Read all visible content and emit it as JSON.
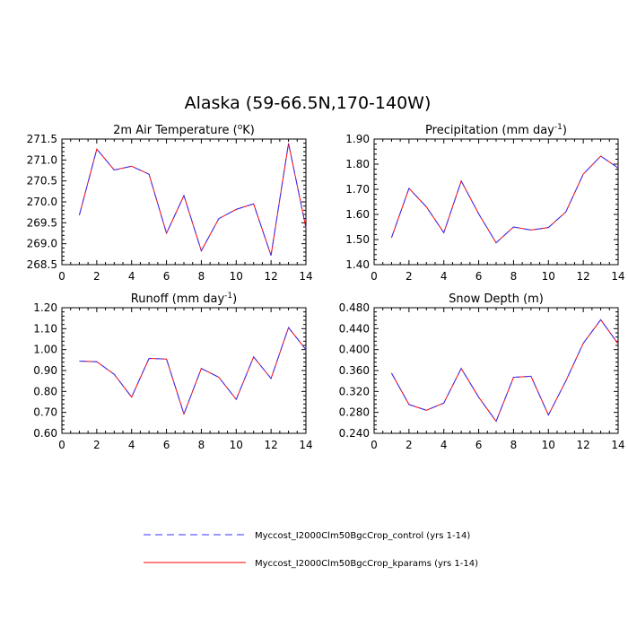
{
  "figure": {
    "title": "Alaska (59-66.5N,170-140W)"
  },
  "legend": [
    {
      "label": "Myccost_I2000Clm50BgcCrop_control (yrs 1-14)",
      "color": "#3333ff",
      "dash": true
    },
    {
      "label": "Myccost_I2000Clm50BgcCrop_kparams (yrs 1-14)",
      "color": "#ff0000",
      "dash": false
    }
  ],
  "chart_data": [
    {
      "type": "line",
      "title_main": "2m Air Temperature (",
      "title_sup": "o",
      "title_end": "K)",
      "x": [
        1,
        2,
        3,
        4,
        5,
        6,
        7,
        8,
        9,
        10,
        11,
        12,
        13,
        14
      ],
      "xlim": [
        0,
        14
      ],
      "xticks": [
        "0",
        "2",
        "4",
        "6",
        "8",
        "10",
        "12",
        "14"
      ],
      "ylim": [
        268.5,
        271.5
      ],
      "yticks": [
        "268.5",
        "269.0",
        "269.5",
        "270.0",
        "270.5",
        "271.0",
        "271.5"
      ],
      "series": [
        {
          "name": "Myccost_I2000Clm50BgcCrop_control (yrs 1-14)",
          "values": [
            269.68,
            271.26,
            270.76,
            270.85,
            270.66,
            269.25,
            270.15,
            268.83,
            269.6,
            269.82,
            269.95,
            268.72,
            271.4,
            269.38
          ]
        },
        {
          "name": "Myccost_I2000Clm50BgcCrop_kparams (yrs 1-14)",
          "values": [
            269.68,
            271.26,
            270.76,
            270.85,
            270.66,
            269.25,
            270.15,
            268.83,
            269.6,
            269.82,
            269.95,
            268.72,
            271.4,
            269.38
          ]
        }
      ]
    },
    {
      "type": "line",
      "title_main": "Precipitation (mm day",
      "title_sup": "-1",
      "title_end": ")",
      "x": [
        1,
        2,
        3,
        4,
        5,
        6,
        7,
        8,
        9,
        10,
        11,
        12,
        13,
        14
      ],
      "xlim": [
        0,
        14
      ],
      "xticks": [
        "0",
        "2",
        "4",
        "6",
        "8",
        "10",
        "12",
        "14"
      ],
      "ylim": [
        1.4,
        1.9
      ],
      "yticks": [
        "1.40",
        "1.50",
        "1.60",
        "1.70",
        "1.80",
        "1.90"
      ],
      "series": [
        {
          "name": "Myccost_I2000Clm50BgcCrop_control (yrs 1-14)",
          "values": [
            1.507,
            1.704,
            1.63,
            1.527,
            1.733,
            1.602,
            1.487,
            1.55,
            1.538,
            1.548,
            1.61,
            1.76,
            1.832,
            1.785
          ]
        },
        {
          "name": "Myccost_I2000Clm50BgcCrop_kparams (yrs 1-14)",
          "values": [
            1.507,
            1.704,
            1.63,
            1.527,
            1.733,
            1.602,
            1.487,
            1.55,
            1.538,
            1.548,
            1.61,
            1.76,
            1.832,
            1.785
          ]
        }
      ]
    },
    {
      "type": "line",
      "title_main": "Runoff (mm day",
      "title_sup": "-1",
      "title_end": ")",
      "x": [
        1,
        2,
        3,
        4,
        5,
        6,
        7,
        8,
        9,
        10,
        11,
        12,
        13,
        14
      ],
      "xlim": [
        0,
        14
      ],
      "xticks": [
        "0",
        "2",
        "4",
        "6",
        "8",
        "10",
        "12",
        "14"
      ],
      "ylim": [
        0.6,
        1.2
      ],
      "yticks": [
        "0.60",
        "0.70",
        "0.80",
        "0.90",
        "1.00",
        "1.10",
        "1.20"
      ],
      "series": [
        {
          "name": "Myccost_I2000Clm50BgcCrop_control (yrs 1-14)",
          "values": [
            0.945,
            0.942,
            0.882,
            0.773,
            0.958,
            0.955,
            0.692,
            0.91,
            0.868,
            0.762,
            0.965,
            0.862,
            1.105,
            1.0
          ]
        },
        {
          "name": "Myccost_I2000Clm50BgcCrop_kparams (yrs 1-14)",
          "values": [
            0.945,
            0.942,
            0.882,
            0.773,
            0.958,
            0.955,
            0.692,
            0.91,
            0.868,
            0.762,
            0.965,
            0.862,
            1.105,
            1.0
          ]
        }
      ]
    },
    {
      "type": "line",
      "title_main": "Snow Depth (m)",
      "title_sup": "",
      "title_end": "",
      "x": [
        1,
        2,
        3,
        4,
        5,
        6,
        7,
        8,
        9,
        10,
        11,
        12,
        13,
        14
      ],
      "xlim": [
        0,
        14
      ],
      "xticks": [
        "0",
        "2",
        "4",
        "6",
        "8",
        "10",
        "12",
        "14"
      ],
      "ylim": [
        0.24,
        0.48
      ],
      "yticks": [
        "0.240",
        "0.280",
        "0.320",
        "0.360",
        "0.400",
        "0.440",
        "0.480"
      ],
      "series": [
        {
          "name": "Myccost_I2000Clm50BgcCrop_control (yrs 1-14)",
          "values": [
            0.355,
            0.295,
            0.284,
            0.298,
            0.364,
            0.309,
            0.263,
            0.347,
            0.349,
            0.275,
            0.34,
            0.412,
            0.457,
            0.411
          ]
        },
        {
          "name": "Myccost_I2000Clm50BgcCrop_kparams (yrs 1-14)",
          "values": [
            0.355,
            0.295,
            0.284,
            0.298,
            0.364,
            0.309,
            0.263,
            0.347,
            0.349,
            0.275,
            0.34,
            0.412,
            0.457,
            0.411
          ]
        }
      ]
    }
  ]
}
